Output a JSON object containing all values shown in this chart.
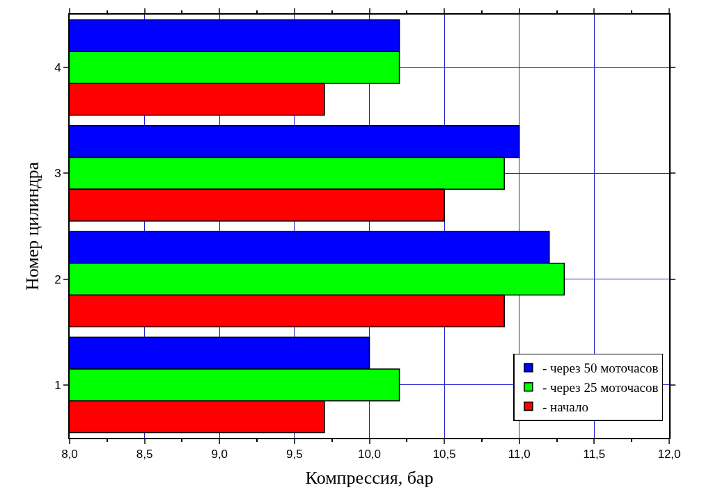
{
  "chart_data": {
    "type": "bar",
    "orientation": "horizontal",
    "xlabel": "Компрессия, бар",
    "ylabel": "Номер цилиндра",
    "categories": [
      "4",
      "3",
      "2",
      "1"
    ],
    "series": [
      {
        "name": "- через 50 моточасов",
        "color": "#0000ff",
        "values": [
          10.2,
          11.0,
          11.2,
          10.0
        ]
      },
      {
        "name": "- через 25 моточасов",
        "color": "#00ff00",
        "values": [
          10.2,
          10.9,
          11.3,
          10.2
        ]
      },
      {
        "name": "- начало",
        "color": "#ff0000",
        "values": [
          9.7,
          10.5,
          10.9,
          9.7
        ]
      }
    ],
    "xlim": [
      8.0,
      12.0
    ],
    "xticks": [
      {
        "value": 8.0,
        "label": "8,0"
      },
      {
        "value": 8.5,
        "label": "8,5"
      },
      {
        "value": 9.0,
        "label": "9,0"
      },
      {
        "value": 9.5,
        "label": "9,5"
      },
      {
        "value": 10.0,
        "label": "10,0"
      },
      {
        "value": 10.5,
        "label": "10,5"
      },
      {
        "value": 11.0,
        "label": "11,0"
      },
      {
        "value": 11.5,
        "label": "11,5"
      },
      {
        "value": 12.0,
        "label": "12,0"
      }
    ],
    "grid": true,
    "legend": "bottom right"
  }
}
